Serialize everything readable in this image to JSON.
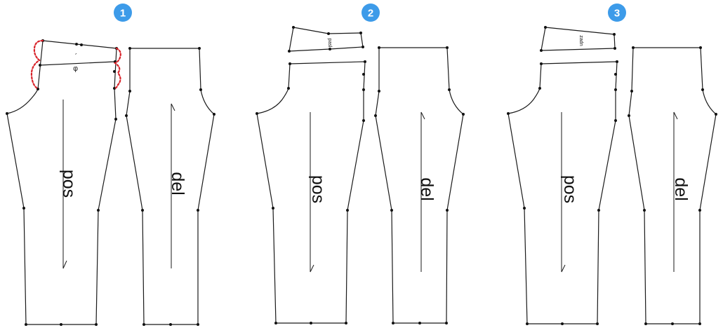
{
  "steps": [
    {
      "number": "1",
      "back_label": "pos",
      "front_label": "del",
      "waistband_markers": [
        "′",
        "φ"
      ]
    },
    {
      "number": "2",
      "back_label": "pos",
      "front_label": "del",
      "waistband_label": "pasl"
    },
    {
      "number": "3",
      "back_label": "pos",
      "front_label": "del",
      "waistband_label": "zadn"
    }
  ],
  "colors": {
    "badge": "#3d9be9",
    "highlight": "#d8232a",
    "line": "#1a1a1a"
  }
}
